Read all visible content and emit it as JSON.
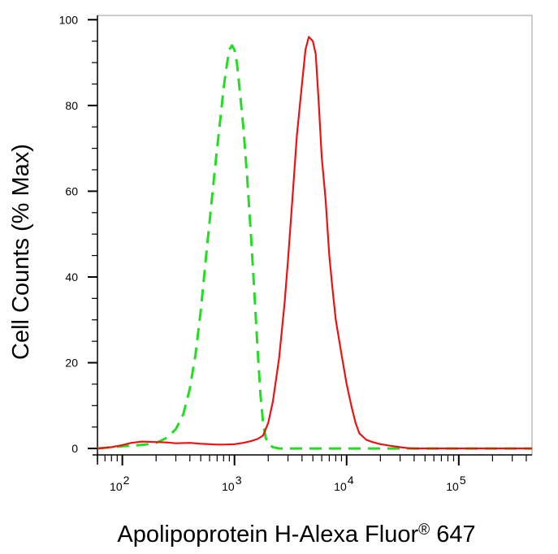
{
  "chart_data": {
    "type": "line",
    "title": "",
    "xlabel": "Apolipoprotein H-Alexa Fluor",
    "xlabel_superscript": "®",
    "xlabel_suffix": " 647",
    "ylabel": "Cell Counts (% Max)",
    "xscale": "log",
    "xlim": [
      60,
      450000
    ],
    "ylim": [
      -1.5,
      101
    ],
    "yticks": [
      0,
      20,
      40,
      60,
      80,
      100
    ],
    "xticks": [
      {
        "value": 100,
        "base": "10",
        "exp": "2"
      },
      {
        "value": 1000,
        "base": "10",
        "exp": "3"
      },
      {
        "value": 10000,
        "base": "10",
        "exp": "4"
      },
      {
        "value": 100000,
        "base": "10",
        "exp": "5"
      }
    ],
    "grid": false,
    "legend": "none",
    "series": [
      {
        "color": "#22dd22",
        "dash": true,
        "x": [
          60,
          80,
          100,
          130,
          160,
          200,
          250,
          300,
          350,
          400,
          450,
          500,
          550,
          600,
          650,
          700,
          750,
          800,
          850,
          900,
          950,
          1000,
          1050,
          1100,
          1200,
          1300,
          1400,
          1500,
          1600,
          1700,
          1800,
          1900,
          2000,
          2200,
          2500,
          3000,
          5000,
          10000,
          50000,
          450000
        ],
        "y": [
          0,
          0.3,
          0.5,
          0.7,
          0.9,
          1.3,
          2.5,
          4.5,
          8,
          14,
          22,
          32,
          43,
          53,
          62,
          70,
          77,
          84,
          89,
          93,
          94,
          93,
          90,
          85,
          75,
          63,
          50,
          37,
          24,
          13,
          6,
          2.5,
          1,
          0.3,
          0,
          0,
          0,
          0,
          0,
          0
        ]
      },
      {
        "color": "#ee1111",
        "dash": false,
        "x": [
          60,
          80,
          100,
          120,
          150,
          200,
          250,
          300,
          400,
          500,
          600,
          700,
          800,
          1000,
          1200,
          1400,
          1600,
          1800,
          2000,
          2200,
          2500,
          2800,
          3000,
          3300,
          3600,
          4000,
          4300,
          4600,
          5000,
          5300,
          5600,
          6000,
          6500,
          7000,
          7500,
          8000,
          9000,
          10000,
          11000,
          12000,
          13000,
          15000,
          17000,
          20000,
          25000,
          30000,
          35000,
          40000,
          100000,
          450000
        ],
        "y": [
          0,
          0.3,
          0.8,
          1.3,
          1.6,
          1.5,
          1.4,
          1.2,
          1.3,
          1.1,
          1.0,
          0.9,
          0.9,
          1.0,
          1.3,
          1.7,
          2.2,
          3.0,
          6,
          11,
          21,
          34,
          44,
          59,
          73,
          85,
          93,
          96,
          95,
          92,
          82,
          68,
          58,
          45,
          37,
          30,
          22,
          15,
          10,
          6,
          3.5,
          2,
          1.5,
          1,
          0.6,
          0.3,
          0.1,
          0,
          0,
          0
        ]
      }
    ]
  }
}
